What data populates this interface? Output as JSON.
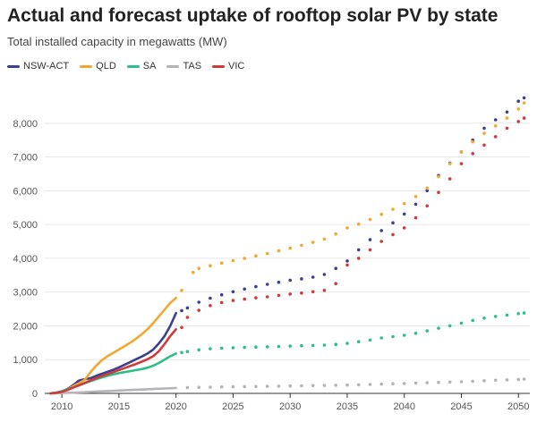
{
  "header": {
    "title": "Actual and forecast uptake of rooftop solar PV by state",
    "subtitle": "Total installed capacity in megawatts (MW)"
  },
  "chart_data": {
    "type": "line",
    "title": "Actual and forecast uptake of rooftop solar PV by state",
    "subtitle": "Total installed capacity in megawatts (MW)",
    "xlabel": "",
    "ylabel": "",
    "xlim": [
      2008.5,
      2051
    ],
    "ylim": [
      0,
      9000
    ],
    "x_ticks": [
      2010,
      2015,
      2020,
      2025,
      2030,
      2035,
      2040,
      2045,
      2050
    ],
    "x_tick_labels": [
      "2010",
      "2015",
      "2020",
      "2025",
      "2030",
      "2035",
      "2040",
      "2045",
      "2050"
    ],
    "y_ticks": [
      0,
      1000,
      2000,
      3000,
      4000,
      5000,
      6000,
      7000,
      8000
    ],
    "y_tick_labels": [
      "0",
      "1,000",
      "2,000",
      "3,000",
      "4,000",
      "5,000",
      "6,000",
      "7,000",
      "8,000"
    ],
    "grid": true,
    "legend_position": "top-left",
    "actual_style": "solid line",
    "forecast_style": "dotted",
    "series": [
      {
        "name": "NSW-ACT",
        "color": "#3d3f8f",
        "actual": [
          [
            2009.0,
            0
          ],
          [
            2009.5,
            20
          ],
          [
            2010.0,
            60
          ],
          [
            2010.5,
            130
          ],
          [
            2011.0,
            250
          ],
          [
            2011.5,
            380
          ],
          [
            2012.0,
            420
          ],
          [
            2012.5,
            450
          ],
          [
            2013.0,
            520
          ],
          [
            2013.5,
            580
          ],
          [
            2014.0,
            640
          ],
          [
            2014.5,
            700
          ],
          [
            2015.0,
            770
          ],
          [
            2015.5,
            850
          ],
          [
            2016.0,
            930
          ],
          [
            2016.5,
            1010
          ],
          [
            2017.0,
            1090
          ],
          [
            2017.5,
            1180
          ],
          [
            2018.0,
            1300
          ],
          [
            2018.5,
            1480
          ],
          [
            2019.0,
            1700
          ],
          [
            2019.5,
            2000
          ],
          [
            2020.0,
            2380
          ]
        ],
        "forecast": [
          [
            2020.5,
            2450
          ],
          [
            2021.0,
            2530
          ],
          [
            2022.0,
            2700
          ],
          [
            2023.0,
            2820
          ],
          [
            2024.0,
            2920
          ],
          [
            2025.0,
            3010
          ],
          [
            2026.0,
            3090
          ],
          [
            2027.0,
            3160
          ],
          [
            2028.0,
            3230
          ],
          [
            2029.0,
            3290
          ],
          [
            2030.0,
            3350
          ],
          [
            2031.0,
            3390
          ],
          [
            2032.0,
            3440
          ],
          [
            2033.0,
            3520
          ],
          [
            2034.0,
            3700
          ],
          [
            2035.0,
            3920
          ],
          [
            2036.0,
            4250
          ],
          [
            2037.0,
            4550
          ],
          [
            2038.0,
            4820
          ],
          [
            2039.0,
            5050
          ],
          [
            2040.0,
            5310
          ],
          [
            2041.0,
            5600
          ],
          [
            2042.0,
            6000
          ],
          [
            2043.0,
            6450
          ],
          [
            2044.0,
            6820
          ],
          [
            2045.0,
            7150
          ],
          [
            2046.0,
            7500
          ],
          [
            2047.0,
            7850
          ],
          [
            2048.0,
            8100
          ],
          [
            2049.0,
            8330
          ],
          [
            2050.0,
            8650
          ],
          [
            2050.5,
            8750
          ]
        ]
      },
      {
        "name": "QLD",
        "color": "#f0a830",
        "actual": [
          [
            2009.0,
            0
          ],
          [
            2009.5,
            15
          ],
          [
            2010.0,
            50
          ],
          [
            2010.5,
            110
          ],
          [
            2011.0,
            220
          ],
          [
            2011.5,
            300
          ],
          [
            2012.0,
            400
          ],
          [
            2012.5,
            620
          ],
          [
            2013.0,
            820
          ],
          [
            2013.5,
            980
          ],
          [
            2014.0,
            1100
          ],
          [
            2014.5,
            1200
          ],
          [
            2015.0,
            1300
          ],
          [
            2015.5,
            1400
          ],
          [
            2016.0,
            1500
          ],
          [
            2016.5,
            1620
          ],
          [
            2017.0,
            1750
          ],
          [
            2017.5,
            1900
          ],
          [
            2018.0,
            2080
          ],
          [
            2018.5,
            2280
          ],
          [
            2019.0,
            2480
          ],
          [
            2019.5,
            2680
          ],
          [
            2020.0,
            2830
          ]
        ],
        "forecast": [
          [
            2020.5,
            3050
          ],
          [
            2021.5,
            3580
          ],
          [
            2022.0,
            3700
          ],
          [
            2023.0,
            3780
          ],
          [
            2024.0,
            3860
          ],
          [
            2025.0,
            3930
          ],
          [
            2026.0,
            4000
          ],
          [
            2027.0,
            4070
          ],
          [
            2028.0,
            4140
          ],
          [
            2029.0,
            4220
          ],
          [
            2030.0,
            4300
          ],
          [
            2031.0,
            4380
          ],
          [
            2032.0,
            4470
          ],
          [
            2033.0,
            4570
          ],
          [
            2034.0,
            4720
          ],
          [
            2035.0,
            4900
          ],
          [
            2036.0,
            5010
          ],
          [
            2037.0,
            5150
          ],
          [
            2038.0,
            5300
          ],
          [
            2039.0,
            5450
          ],
          [
            2040.0,
            5620
          ],
          [
            2041.0,
            5830
          ],
          [
            2042.0,
            6080
          ],
          [
            2043.0,
            6420
          ],
          [
            2044.0,
            6800
          ],
          [
            2045.0,
            7150
          ],
          [
            2046.0,
            7450
          ],
          [
            2047.0,
            7700
          ],
          [
            2048.0,
            7920
          ],
          [
            2049.0,
            8150
          ],
          [
            2050.0,
            8420
          ],
          [
            2050.5,
            8600
          ]
        ]
      },
      {
        "name": "SA",
        "color": "#2cbf87",
        "actual": [
          [
            2009.0,
            0
          ],
          [
            2009.5,
            20
          ],
          [
            2010.0,
            60
          ],
          [
            2010.5,
            120
          ],
          [
            2011.0,
            180
          ],
          [
            2011.5,
            240
          ],
          [
            2012.0,
            300
          ],
          [
            2012.5,
            360
          ],
          [
            2013.0,
            420
          ],
          [
            2013.5,
            470
          ],
          [
            2014.0,
            520
          ],
          [
            2014.5,
            560
          ],
          [
            2015.0,
            600
          ],
          [
            2015.5,
            630
          ],
          [
            2016.0,
            660
          ],
          [
            2016.5,
            690
          ],
          [
            2017.0,
            720
          ],
          [
            2017.5,
            760
          ],
          [
            2018.0,
            820
          ],
          [
            2018.5,
            900
          ],
          [
            2019.0,
            1000
          ],
          [
            2019.5,
            1100
          ],
          [
            2020.0,
            1180
          ]
        ],
        "forecast": [
          [
            2020.5,
            1210
          ],
          [
            2021.0,
            1240
          ],
          [
            2022.0,
            1290
          ],
          [
            2023.0,
            1320
          ],
          [
            2024.0,
            1340
          ],
          [
            2025.0,
            1350
          ],
          [
            2026.0,
            1360
          ],
          [
            2027.0,
            1370
          ],
          [
            2028.0,
            1380
          ],
          [
            2029.0,
            1390
          ],
          [
            2030.0,
            1400
          ],
          [
            2031.0,
            1410
          ],
          [
            2032.0,
            1420
          ],
          [
            2033.0,
            1430
          ],
          [
            2034.0,
            1450
          ],
          [
            2035.0,
            1480
          ],
          [
            2036.0,
            1530
          ],
          [
            2037.0,
            1580
          ],
          [
            2038.0,
            1640
          ],
          [
            2039.0,
            1680
          ],
          [
            2040.0,
            1720
          ],
          [
            2041.0,
            1780
          ],
          [
            2042.0,
            1850
          ],
          [
            2043.0,
            1930
          ],
          [
            2044.0,
            2000
          ],
          [
            2045.0,
            2080
          ],
          [
            2046.0,
            2160
          ],
          [
            2047.0,
            2230
          ],
          [
            2048.0,
            2280
          ],
          [
            2049.0,
            2320
          ],
          [
            2050.0,
            2360
          ],
          [
            2050.5,
            2380
          ]
        ]
      },
      {
        "name": "TAS",
        "color": "#b4b4b8",
        "actual": [
          [
            2009.0,
            0
          ],
          [
            2010.0,
            10
          ],
          [
            2011.0,
            20
          ],
          [
            2012.0,
            35
          ],
          [
            2013.0,
            55
          ],
          [
            2014.0,
            70
          ],
          [
            2015.0,
            85
          ],
          [
            2016.0,
            100
          ],
          [
            2017.0,
            115
          ],
          [
            2018.0,
            130
          ],
          [
            2019.0,
            145
          ],
          [
            2020.0,
            160
          ]
        ],
        "forecast": [
          [
            2021.0,
            170
          ],
          [
            2022.0,
            180
          ],
          [
            2023.0,
            185
          ],
          [
            2024.0,
            190
          ],
          [
            2025.0,
            195
          ],
          [
            2026.0,
            200
          ],
          [
            2027.0,
            205
          ],
          [
            2028.0,
            210
          ],
          [
            2029.0,
            215
          ],
          [
            2030.0,
            220
          ],
          [
            2031.0,
            225
          ],
          [
            2032.0,
            230
          ],
          [
            2033.0,
            235
          ],
          [
            2034.0,
            240
          ],
          [
            2035.0,
            245
          ],
          [
            2036.0,
            255
          ],
          [
            2037.0,
            265
          ],
          [
            2038.0,
            275
          ],
          [
            2039.0,
            285
          ],
          [
            2040.0,
            295
          ],
          [
            2041.0,
            305
          ],
          [
            2042.0,
            315
          ],
          [
            2043.0,
            325
          ],
          [
            2044.0,
            335
          ],
          [
            2045.0,
            345
          ],
          [
            2046.0,
            360
          ],
          [
            2047.0,
            375
          ],
          [
            2048.0,
            390
          ],
          [
            2049.0,
            400
          ],
          [
            2050.0,
            410
          ],
          [
            2050.5,
            420
          ]
        ]
      },
      {
        "name": "VIC",
        "color": "#d03a3a",
        "actual": [
          [
            2009.0,
            0
          ],
          [
            2009.5,
            15
          ],
          [
            2010.0,
            45
          ],
          [
            2010.5,
            100
          ],
          [
            2011.0,
            170
          ],
          [
            2011.5,
            240
          ],
          [
            2012.0,
            310
          ],
          [
            2012.5,
            380
          ],
          [
            2013.0,
            450
          ],
          [
            2013.5,
            510
          ],
          [
            2014.0,
            570
          ],
          [
            2014.5,
            630
          ],
          [
            2015.0,
            690
          ],
          [
            2015.5,
            750
          ],
          [
            2016.0,
            810
          ],
          [
            2016.5,
            870
          ],
          [
            2017.0,
            940
          ],
          [
            2017.5,
            1010
          ],
          [
            2018.0,
            1100
          ],
          [
            2018.5,
            1250
          ],
          [
            2019.0,
            1460
          ],
          [
            2019.5,
            1700
          ],
          [
            2020.0,
            1900
          ]
        ],
        "forecast": [
          [
            2020.5,
            1950
          ],
          [
            2021.0,
            2250
          ],
          [
            2022.0,
            2460
          ],
          [
            2023.0,
            2600
          ],
          [
            2024.0,
            2690
          ],
          [
            2025.0,
            2750
          ],
          [
            2026.0,
            2790
          ],
          [
            2027.0,
            2830
          ],
          [
            2028.0,
            2860
          ],
          [
            2029.0,
            2900
          ],
          [
            2030.0,
            2940
          ],
          [
            2031.0,
            2970
          ],
          [
            2032.0,
            3010
          ],
          [
            2033.0,
            3050
          ],
          [
            2034.0,
            3250
          ],
          [
            2035.0,
            3800
          ],
          [
            2036.0,
            4000
          ],
          [
            2037.0,
            4250
          ],
          [
            2038.0,
            4500
          ],
          [
            2039.0,
            4700
          ],
          [
            2040.0,
            4900
          ],
          [
            2041.0,
            5200
          ],
          [
            2042.0,
            5550
          ],
          [
            2043.0,
            5950
          ],
          [
            2044.0,
            6350
          ],
          [
            2045.0,
            6800
          ],
          [
            2046.0,
            7100
          ],
          [
            2047.0,
            7350
          ],
          [
            2048.0,
            7600
          ],
          [
            2049.0,
            7850
          ],
          [
            2050.0,
            8050
          ],
          [
            2050.5,
            8150
          ]
        ]
      }
    ]
  }
}
